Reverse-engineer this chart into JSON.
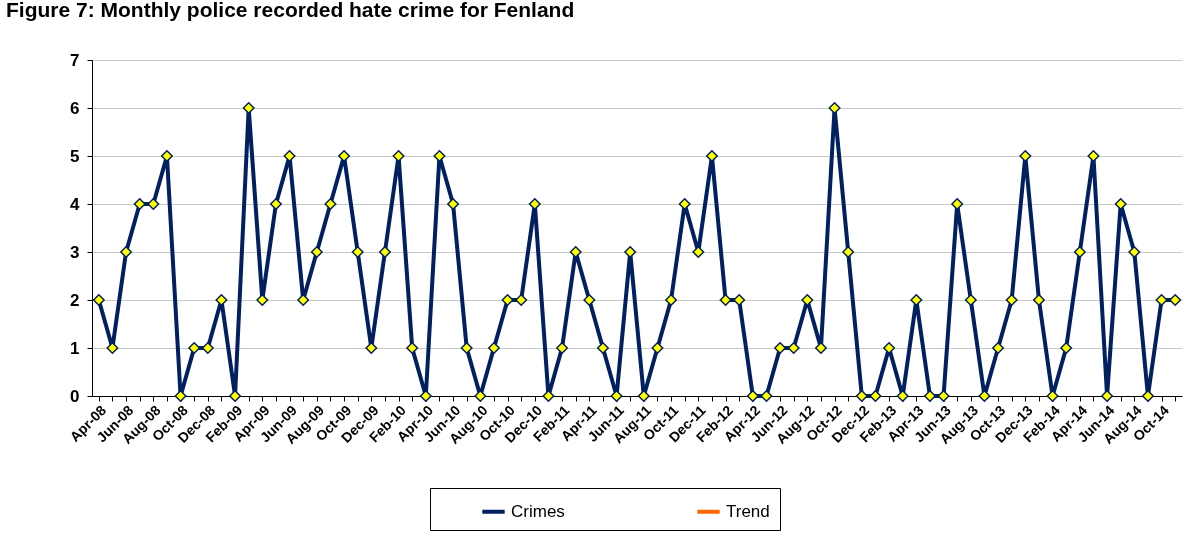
{
  "chart_data": {
    "type": "line",
    "title": "Figure 7: Monthly police recorded hate crime for Fenland",
    "categories": [
      "Apr-08",
      null,
      "Jun-08",
      null,
      "Aug-08",
      null,
      "Oct-08",
      null,
      "Dec-08",
      null,
      "Feb-09",
      null,
      "Apr-09",
      null,
      "Jun-09",
      null,
      "Aug-09",
      null,
      "Oct-09",
      null,
      "Dec-09",
      null,
      "Feb-10",
      null,
      "Apr-10",
      null,
      "Jun-10",
      null,
      "Aug-10",
      null,
      "Oct-10",
      null,
      "Dec-10",
      null,
      "Feb-11",
      null,
      "Apr-11",
      null,
      "Jun-11",
      null,
      "Aug-11",
      null,
      "Oct-11",
      null,
      "Dec-11",
      null,
      "Feb-12",
      null,
      "Apr-12",
      null,
      "Jun-12",
      null,
      "Aug-12",
      null,
      "Oct-12",
      null,
      "Dec-12",
      null,
      "Feb-13",
      null,
      "Apr-13",
      null,
      "Jun-13",
      null,
      "Aug-13",
      null,
      "Oct-13",
      null,
      "Dec-13",
      null,
      "Feb-14",
      null,
      "Apr-14",
      null,
      "Jun-14",
      null,
      "Aug-14",
      null,
      "Oct-14",
      null
    ],
    "series": [
      {
        "name": "Crimes",
        "color": "#002060",
        "values": [
          2,
          1,
          3,
          4,
          4,
          5,
          0,
          1,
          1,
          2,
          0,
          6,
          2,
          4,
          5,
          2,
          3,
          4,
          5,
          3,
          1,
          3,
          5,
          1,
          0,
          5,
          4,
          1,
          0,
          1,
          2,
          2,
          4,
          0,
          1,
          3,
          2,
          1,
          0,
          3,
          0,
          1,
          2,
          4,
          3,
          5,
          2,
          2,
          0,
          0,
          1,
          1,
          2,
          1,
          6,
          3,
          0,
          0,
          1,
          0,
          2,
          0,
          0,
          4,
          2,
          0,
          1,
          2,
          5,
          2,
          0,
          1,
          3,
          5,
          0,
          4,
          3,
          0,
          2,
          2
        ]
      },
      {
        "name": "Trend",
        "color": "#ff6600",
        "values": [
          null,
          null,
          null,
          null,
          null,
          null,
          null,
          null,
          null,
          null,
          null,
          null,
          null,
          null,
          null,
          null,
          null,
          null,
          null,
          null,
          null,
          null,
          null,
          null,
          null,
          null,
          null,
          null,
          null,
          null,
          null,
          null,
          null,
          null,
          null,
          null,
          null,
          null,
          null,
          null,
          null,
          null,
          null,
          null,
          null,
          null,
          null,
          null,
          null,
          null,
          null,
          null,
          null,
          null,
          null,
          null,
          null,
          null,
          null,
          null,
          null,
          null,
          null,
          null,
          null,
          null,
          null,
          null,
          null,
          null,
          null,
          null,
          null,
          null,
          null,
          null,
          null,
          null,
          null,
          null
        ]
      }
    ],
    "ylim": [
      0,
      7
    ],
    "yticks": [
      0,
      1,
      2,
      3,
      4,
      5,
      6,
      7
    ],
    "grid": "y",
    "legend": "bottom",
    "marker": "diamond",
    "line_style": "solid"
  }
}
